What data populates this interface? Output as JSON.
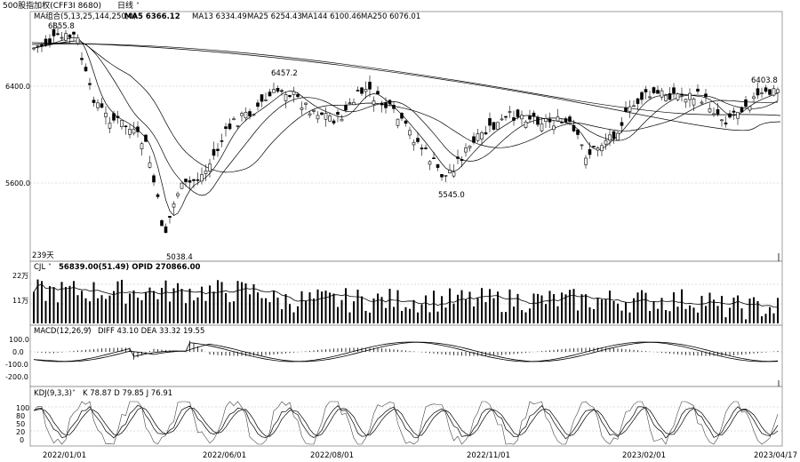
{
  "header": {
    "title": "500股指加权(CFF3I 8680)",
    "period": "日线",
    "ma_label": "MA组合(5,13,25,144,250,0)",
    "ma_values": [
      "MA5 6366.12",
      "MA13 6334.49",
      "MA25 6254.43",
      "MA144 6100.46",
      "MA250 6076.01"
    ]
  },
  "price_panel": {
    "y_ticks": [
      "6400.0",
      "5600.0"
    ],
    "annotations": [
      "6855.8",
      "6457.2",
      "5545.0",
      "5038.4",
      "6403.8"
    ],
    "days_label": "239天"
  },
  "volume_panel": {
    "label": "CJL",
    "values_text": "56839.00(51.49)  OPID 270866.00",
    "y_ticks": [
      "22万",
      "11万"
    ]
  },
  "macd_panel": {
    "label": "MACD(12,26,9)",
    "values_text": "DIFF 43.10  DEA 33.32   19.55",
    "y_ticks": [
      "100.0",
      "0.0",
      "-100.0",
      "-200.0"
    ]
  },
  "kdj_panel": {
    "label": "KDJ(9,3,3)",
    "values_text": "K 78.87  D 79.85  J 76.91",
    "y_ticks": [
      "100",
      "80",
      "50",
      "20",
      "0"
    ]
  },
  "x_axis": {
    "dates": [
      "2022/01/01",
      "2022/06/01",
      "2022/08/01",
      "2022/11/01",
      "2023/02/01",
      "2023/04/17"
    ]
  },
  "colors": {
    "background": "#ffffff",
    "line": "#000000",
    "grid": "#bbbbbb"
  }
}
